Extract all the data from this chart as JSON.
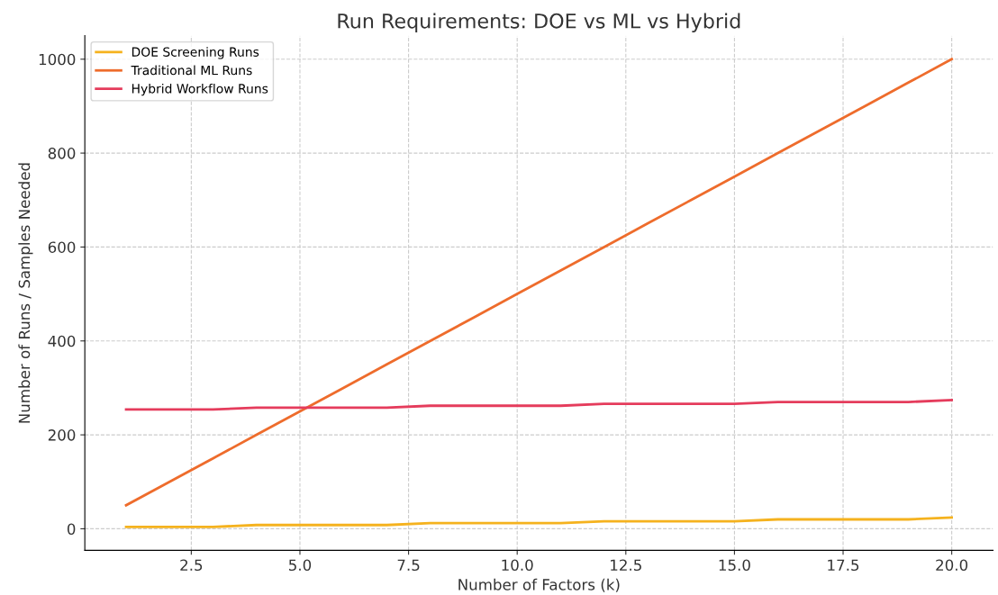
{
  "chart_data": {
    "type": "line",
    "title": "Run Requirements: DOE vs ML vs Hybrid",
    "xlabel": "Number of Factors (k)",
    "ylabel": "Number of Runs / Samples Needed",
    "x": [
      1,
      2,
      3,
      4,
      5,
      6,
      7,
      8,
      9,
      10,
      11,
      12,
      13,
      14,
      15,
      16,
      17,
      18,
      19,
      20
    ],
    "series": [
      {
        "name": "DOE Screening Runs",
        "color": "#f5b21e",
        "values": [
          4,
          4,
          4,
          8,
          8,
          8,
          8,
          12,
          12,
          12,
          12,
          16,
          16,
          16,
          16,
          20,
          20,
          20,
          20,
          24
        ]
      },
      {
        "name": "Traditional ML Runs",
        "color": "#ee6c2c",
        "values": [
          50,
          100,
          150,
          200,
          250,
          300,
          350,
          400,
          450,
          500,
          550,
          600,
          650,
          700,
          750,
          800,
          850,
          900,
          950,
          1000
        ]
      },
      {
        "name": "Hybrid Workflow Runs",
        "color": "#e53c5c",
        "values": [
          254,
          254,
          254,
          258,
          258,
          258,
          258,
          262,
          262,
          262,
          262,
          266,
          266,
          266,
          266,
          270,
          270,
          270,
          270,
          274
        ]
      }
    ],
    "xlim": [
      0.05,
      20.95
    ],
    "ylim": [
      -46,
      1050
    ],
    "xticks": [
      {
        "value": 2.5,
        "label": "2.5"
      },
      {
        "value": 5,
        "label": "5.0"
      },
      {
        "value": 7.5,
        "label": "7.5"
      },
      {
        "value": 10,
        "label": "10.0"
      },
      {
        "value": 12.5,
        "label": "12.5"
      },
      {
        "value": 15,
        "label": "15.0"
      },
      {
        "value": 17.5,
        "label": "17.5"
      },
      {
        "value": 20,
        "label": "20.0"
      }
    ],
    "yticks": [
      0,
      200,
      400,
      600,
      800,
      1000
    ],
    "grid": true,
    "legend": "top left",
    "marker": "none",
    "line_style": "solid"
  }
}
